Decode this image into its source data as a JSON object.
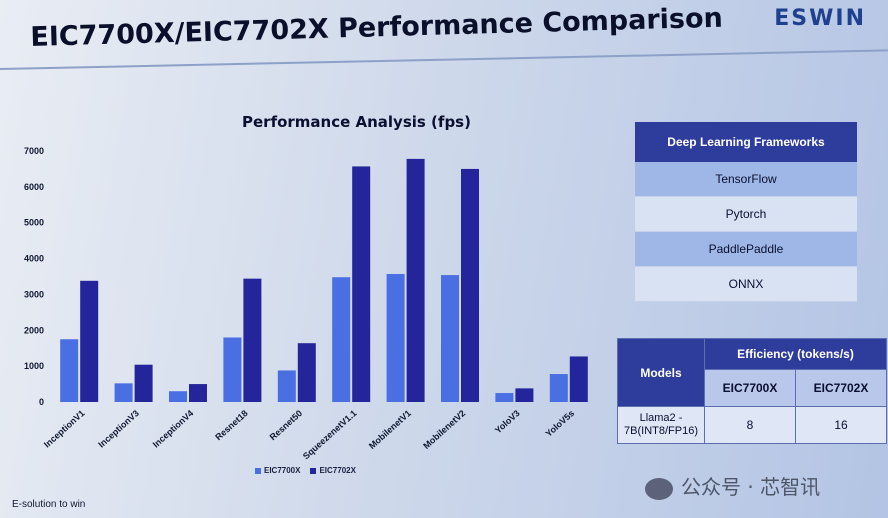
{
  "brand": "ESWIN",
  "slide_title": "EIC7700X/EIC7702X Performance Comparison",
  "footer": "E-solution to win",
  "watermark": "公众号 · 芯智讯",
  "chart_data": {
    "type": "bar",
    "title": "Performance Analysis (fps)",
    "categories": [
      "InceptionV1",
      "InceptionV3",
      "InceptionV4",
      "Resnet18",
      "Resnet50",
      "SqueezenetV1.1",
      "MobilenetV1",
      "MobilenetV2",
      "YoloV3",
      "YoloV5s"
    ],
    "series": [
      {
        "name": "EIC7700X",
        "color": "#4a6fe2",
        "values": [
          1750,
          520,
          300,
          1800,
          880,
          3480,
          3570,
          3540,
          250,
          780
        ]
      },
      {
        "name": "EIC7702X",
        "color": "#24259a",
        "values": [
          3380,
          1040,
          500,
          3440,
          1640,
          6570,
          6780,
          6500,
          380,
          1270
        ]
      }
    ],
    "ylim": [
      0,
      7000
    ],
    "yticks": [
      0,
      1000,
      2000,
      3000,
      4000,
      5000,
      6000,
      7000
    ],
    "legend_position": "bottom",
    "grid": false
  },
  "frameworks": {
    "header": "Deep Learning Frameworks",
    "items": [
      "TensorFlow",
      "Pytorch",
      "PaddlePaddle",
      "ONNX"
    ]
  },
  "efficiency": {
    "models_header": "Models",
    "metric_header": "Efficiency (tokens/s)",
    "columns": [
      "EIC7700X",
      "EIC7702X"
    ],
    "rows": [
      {
        "model_line1": "Llama2 -",
        "model_line2": "7B(INT8/FP16)",
        "values": [
          "8",
          "16"
        ]
      }
    ]
  }
}
